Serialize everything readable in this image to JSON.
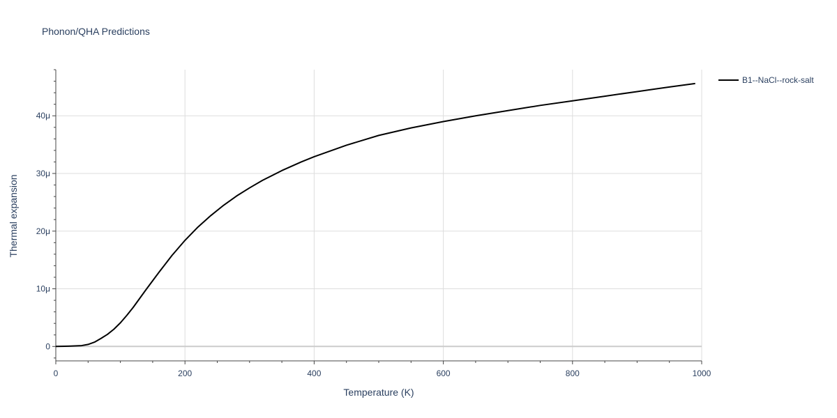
{
  "chart_data": {
    "type": "line",
    "title": "Phonon/QHA Predictions",
    "xlabel": "Temperature (K)",
    "ylabel": "Thermal expansion",
    "xlim": [
      0,
      1000
    ],
    "ylim": [
      -2.5e-06,
      4.8e-05
    ],
    "x_ticks": [
      0,
      200,
      400,
      600,
      800,
      1000
    ],
    "x_tick_labels": [
      "0",
      "200",
      "400",
      "600",
      "800",
      "1000"
    ],
    "y_ticks": [
      0,
      1e-05,
      2e-05,
      3e-05,
      4e-05
    ],
    "y_tick_labels": [
      "0",
      "10μ",
      "20μ",
      "30μ",
      "40μ"
    ],
    "grid": true,
    "legend_position": "top-right outside",
    "series": [
      {
        "name": "B1--NaCl--rock-salt",
        "color": "#000000",
        "x": [
          0,
          20,
          40,
          50,
          60,
          70,
          80,
          90,
          100,
          110,
          120,
          140,
          160,
          180,
          200,
          220,
          240,
          260,
          280,
          300,
          320,
          350,
          380,
          400,
          450,
          500,
          550,
          600,
          650,
          700,
          750,
          800,
          850,
          900,
          950,
          990
        ],
        "y": [
          0,
          5e-08,
          1.5e-07,
          3.5e-07,
          7.5e-07,
          1.4e-06,
          2.1e-06,
          3e-06,
          4.1e-06,
          5.4e-06,
          6.8e-06,
          9.9e-06,
          1.29e-05,
          1.58e-05,
          1.84e-05,
          2.07e-05,
          2.27e-05,
          2.45e-05,
          2.61e-05,
          2.75e-05,
          2.88e-05,
          3.05e-05,
          3.2e-05,
          3.29e-05,
          3.49e-05,
          3.66e-05,
          3.79e-05,
          3.9e-05,
          4e-05,
          4.09e-05,
          4.18e-05,
          4.26e-05,
          4.34e-05,
          4.42e-05,
          4.5e-05,
          4.56e-05
        ]
      }
    ]
  }
}
